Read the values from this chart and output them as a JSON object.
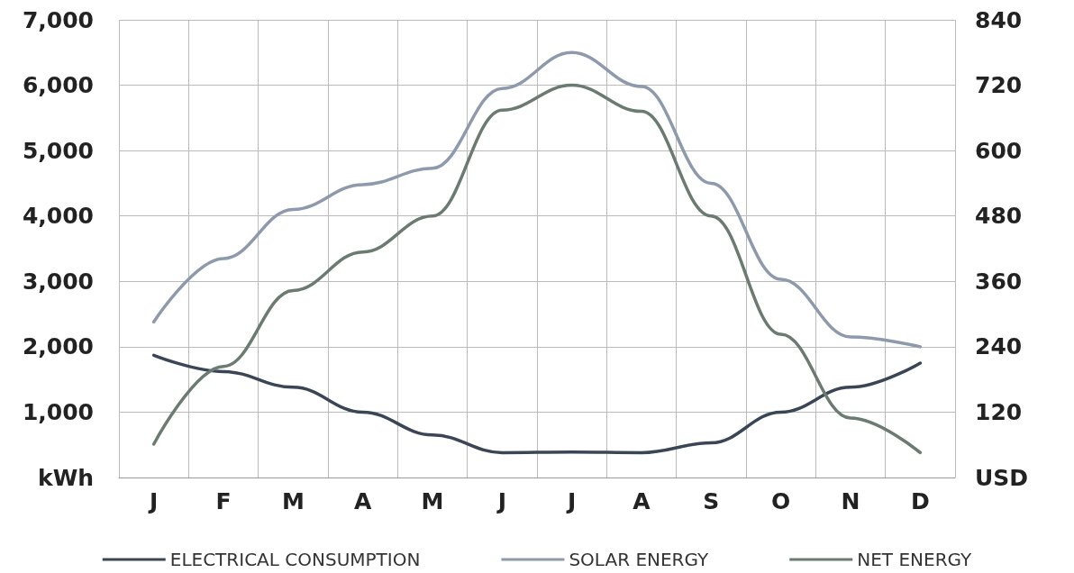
{
  "chart_data": {
    "type": "line",
    "categories": [
      "J",
      "F",
      "M",
      "A",
      "M",
      "J",
      "J",
      "A",
      "S",
      "O",
      "N",
      "D"
    ],
    "series": [
      {
        "name": "ELECTRICAL CONSUMPTION",
        "color": "#3a4555",
        "values": [
          1870,
          1620,
          1380,
          1000,
          650,
          380,
          390,
          380,
          530,
          1000,
          1380,
          1750
        ]
      },
      {
        "name": "SOLAR ENERGY",
        "color": "#8e9aac",
        "values": [
          2380,
          3350,
          4100,
          4480,
          4730,
          5950,
          6500,
          5980,
          4500,
          3030,
          2150,
          2000
        ]
      },
      {
        "name": "NET ENERGY",
        "color": "#6b7b72",
        "values": [
          510,
          1700,
          2860,
          3450,
          4000,
          5620,
          6000,
          5600,
          4000,
          2190,
          910,
          380
        ]
      }
    ],
    "ylim": [
      0,
      7000
    ],
    "yticks": [
      {
        "value": 0,
        "label": "kWh"
      },
      {
        "value": 1000,
        "label": "1,000"
      },
      {
        "value": 2000,
        "label": "2,000"
      },
      {
        "value": 3000,
        "label": "3,000"
      },
      {
        "value": 4000,
        "label": "4,000"
      },
      {
        "value": 5000,
        "label": "5,000"
      },
      {
        "value": 6000,
        "label": "6,000"
      },
      {
        "value": 7000,
        "label": "7,000"
      }
    ],
    "y2lim": [
      0,
      840
    ],
    "y2ticks": [
      {
        "value": 0,
        "label": "USD"
      },
      120,
      240,
      360,
      480,
      600,
      720,
      840
    ],
    "grid": true,
    "legend": "bottom",
    "marker": "none",
    "line_style": "solid"
  }
}
